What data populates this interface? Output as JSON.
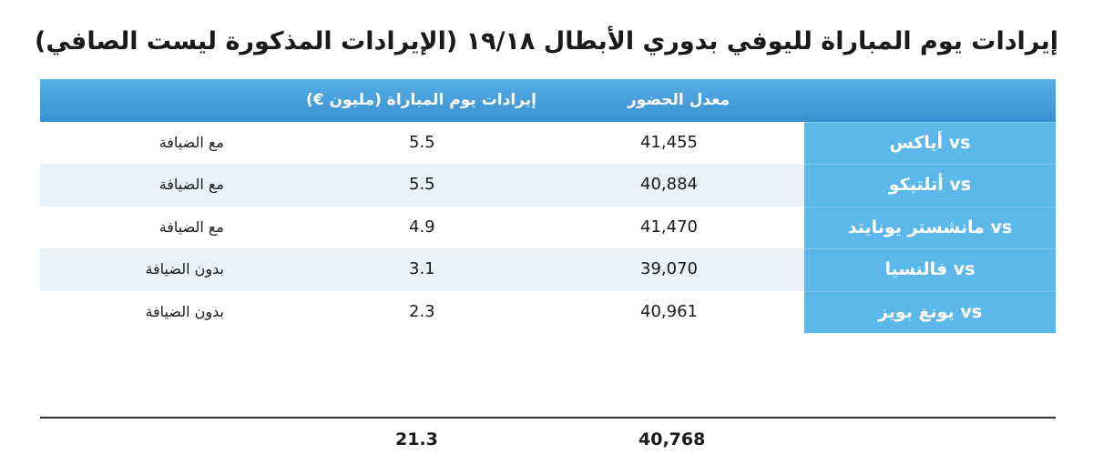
{
  "title": "إيرادات يوم المباراة لليوفي بدوري الأبطال ١٩/١٨ (الإيرادات المذكورة ليست الصافي)",
  "headers": {
    "attendance": "معدل الحضور",
    "revenue": "إيرادات يوم المباراة (مليون €)"
  },
  "rows": [
    {
      "team": "vs أياكس",
      "attendance": "41,455",
      "revenue": "5.5",
      "note": "مع الضيافة"
    },
    {
      "team": "vs أتلتيكو",
      "attendance": "40,884",
      "revenue": "5.5",
      "note": "مع الضيافة"
    },
    {
      "team": "vs مانشستر يونايتد",
      "attendance": "41,470",
      "revenue": "4.9",
      "note": "مع الضيافة"
    },
    {
      "team": "vs فالنسيا",
      "attendance": "39,070",
      "revenue": "3.1",
      "note": "بدون الضيافة"
    },
    {
      "team": "vs يونغ بويز",
      "attendance": "40,961",
      "revenue": "2.3",
      "note": "بدون الضيافة"
    }
  ],
  "totals": {
    "attendance": "40,768",
    "revenue": "21.3"
  },
  "colors": {
    "header": "#4aa3dd",
    "team_cell": "#5cb7ea",
    "row_shade": "#e8f1f9"
  }
}
